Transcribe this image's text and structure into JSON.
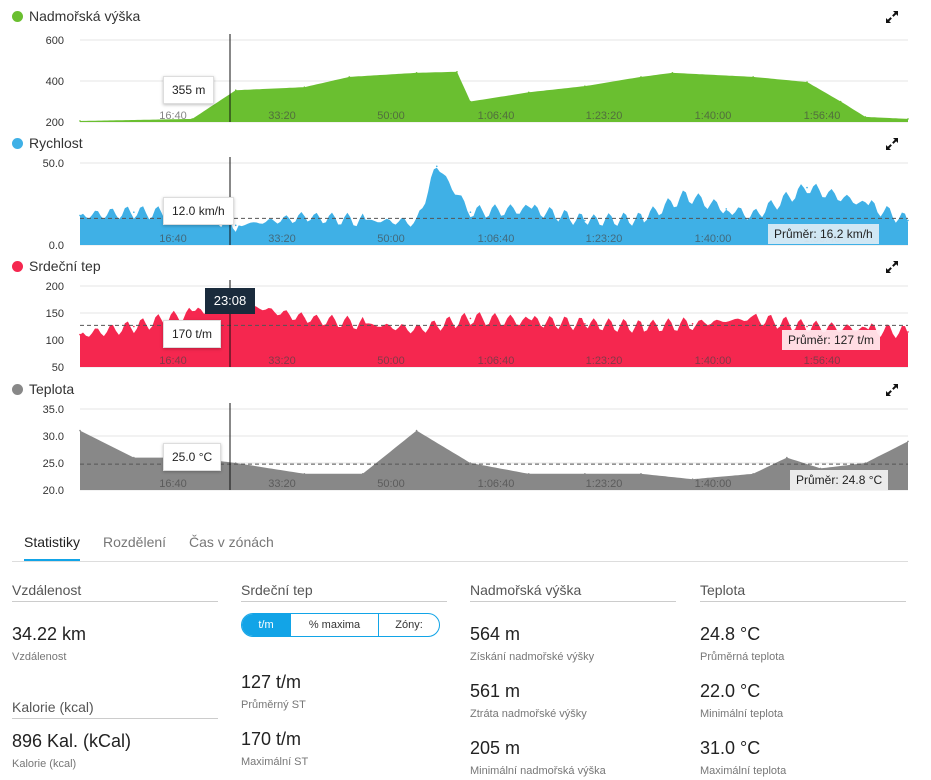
{
  "colors": {
    "elevation": "#6abf30",
    "speed": "#3fb0e6",
    "heart": "#f5274f",
    "temp": "#888888",
    "accent": "#12a4e7"
  },
  "x_ticks": [
    "16:40",
    "33:20",
    "50:00",
    "1:06:40",
    "1:23:20",
    "1:40:00",
    "1:56:40"
  ],
  "cursor_time": "23:08",
  "charts": {
    "elevation": {
      "title": "Nadmořská výška",
      "expand_icon": "expand-arrows-icon",
      "y_ticks": [
        "600",
        "400",
        "200"
      ],
      "ylim": [
        200,
        600
      ],
      "tooltip": "355 m"
    },
    "speed": {
      "title": "Rychlost",
      "expand_icon": "expand-arrows-icon",
      "y_ticks": [
        "50.0",
        "0.0"
      ],
      "ylim": [
        0,
        50
      ],
      "tooltip": "12.0 km/h",
      "avg": "Průměr: 16.2 km/h"
    },
    "heart": {
      "title": "Srdeční tep",
      "expand_icon": "expand-arrows-icon",
      "y_ticks": [
        "200",
        "150",
        "100",
        "50"
      ],
      "ylim": [
        50,
        200
      ],
      "tooltip": "170 t/m",
      "avg": "Průměr: 127 t/m"
    },
    "temp": {
      "title": "Teplota",
      "expand_icon": "expand-arrows-icon",
      "y_ticks": [
        "35.0",
        "30.0",
        "25.0",
        "20.0"
      ],
      "ylim": [
        20,
        35
      ],
      "tooltip": "25.0 °C",
      "avg": "Průměr: 24.8 °C"
    }
  },
  "chart_data": [
    {
      "type": "area",
      "title": "Nadmořská výška",
      "xlabel": "",
      "ylabel": "",
      "x": [
        "0:00",
        "16:40",
        "23:08",
        "33:20",
        "40:00",
        "50:00",
        "56:00",
        "58:00",
        "1:06:40",
        "1:15:00",
        "1:23:20",
        "1:28:00",
        "1:40:00",
        "1:48:00",
        "1:53:00",
        "1:56:40",
        "2:03:00"
      ],
      "values": [
        205,
        215,
        355,
        370,
        420,
        440,
        445,
        300,
        345,
        375,
        420,
        440,
        420,
        395,
        300,
        225,
        215
      ],
      "ylim": [
        200,
        600
      ]
    },
    {
      "type": "area",
      "title": "Rychlost",
      "x": [
        "0:00",
        "8:00",
        "16:40",
        "23:08",
        "33:20",
        "42:00",
        "50:00",
        "53:00",
        "58:00",
        "1:06:40",
        "1:15:00",
        "1:23:20",
        "1:30:00",
        "1:36:00",
        "1:40:00",
        "1:48:00",
        "1:56:40",
        "2:03:00"
      ],
      "values": [
        18,
        20,
        19,
        12,
        17,
        15,
        14,
        48,
        20,
        22,
        15,
        16,
        30,
        22,
        18,
        35,
        25,
        15
      ],
      "avg": 16.2,
      "ylim": [
        0,
        50
      ]
    },
    {
      "type": "area",
      "title": "Srdeční tep",
      "x": [
        "0:00",
        "8:00",
        "16:40",
        "23:08",
        "33:20",
        "42:00",
        "50:00",
        "58:00",
        "1:06:40",
        "1:15:00",
        "1:23:20",
        "1:31:00",
        "1:40:00",
        "1:48:00",
        "1:56:40",
        "2:03:00"
      ],
      "values": [
        110,
        125,
        150,
        170,
        140,
        130,
        120,
        140,
        135,
        130,
        125,
        130,
        140,
        125,
        120,
        115
      ],
      "avg": 127,
      "ylim": [
        50,
        200
      ]
    },
    {
      "type": "area",
      "title": "Teplota",
      "x": [
        "0:00",
        "8:00",
        "16:40",
        "23:08",
        "33:20",
        "42:00",
        "50:00",
        "58:00",
        "1:06:40",
        "1:15:00",
        "1:23:20",
        "1:31:00",
        "1:40:00",
        "1:45:00",
        "1:50:00",
        "1:56:40",
        "2:03:00"
      ],
      "values": [
        31.0,
        26.0,
        26.0,
        25.0,
        23.0,
        23.0,
        31.0,
        25.0,
        23.0,
        23.0,
        23.0,
        22.0,
        23.0,
        26.0,
        24.0,
        25.0,
        29.0
      ],
      "avg": 24.8,
      "ylim": [
        20,
        35
      ]
    }
  ],
  "tabs": [
    "Statistiky",
    "Rozdělení",
    "Čas v zónách"
  ],
  "stats": {
    "distance": {
      "header": "Vzdálenost",
      "value": "34.22 km",
      "label": "Vzdálenost"
    },
    "calories": {
      "header": "Kalorie (kcal)",
      "value": "896 Kal. (kCal)",
      "label": "Kalorie (kcal)"
    },
    "heart": {
      "header": "Srdeční tep",
      "toggle": [
        "t/m",
        "% maxima",
        "Zóny:"
      ],
      "avg_value": "127 t/m",
      "avg_label": "Průměrný ST",
      "max_value": "170 t/m",
      "max_label": "Maximální ST"
    },
    "elevation": {
      "header": "Nadmořská výška",
      "gain_value": "564 m",
      "gain_label": "Získání nadmořské výšky",
      "loss_value": "561 m",
      "loss_label": "Ztráta nadmořské výšky",
      "min_value": "205 m",
      "min_label": "Minimální nadmořská výška"
    },
    "temperature": {
      "header": "Teplota",
      "avg_value": "24.8 °C",
      "avg_label": "Průměrná teplota",
      "min_value": "22.0 °C",
      "min_label": "Minimální teplota",
      "max_value": "31.0 °C",
      "max_label": "Maximální teplota"
    }
  }
}
